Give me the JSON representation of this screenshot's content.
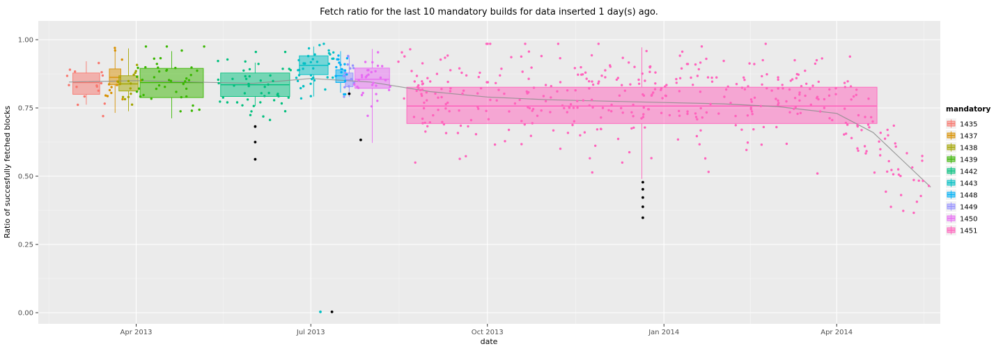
{
  "title": "Fetch ratio for the last 10 mandatory builds for data inserted 1 day(s) ago.",
  "axes": {
    "x": {
      "label": "date",
      "ticks": [
        "Apr 2013",
        "Jul 2013",
        "Oct 2013",
        "Jan 2014",
        "Apr 2014"
      ],
      "tick_dates": [
        "2013-04-01",
        "2013-07-01",
        "2013-10-01",
        "2014-01-01",
        "2014-04-01"
      ],
      "domain": [
        "2013-02-09",
        "2014-05-25"
      ]
    },
    "y": {
      "label": "Ratio of succesfully fetched blocks",
      "ticks": [
        "1.00",
        "0.75",
        "0.50",
        "0.25",
        "0.00"
      ],
      "tick_values": [
        1.0,
        0.75,
        0.5,
        0.25,
        0.0
      ]
    }
  },
  "legend": {
    "title": "mandatory",
    "items": [
      {
        "label": "1435",
        "color": "#F8766D"
      },
      {
        "label": "1437",
        "color": "#D89000"
      },
      {
        "label": "1438",
        "color": "#A3A500"
      },
      {
        "label": "1439",
        "color": "#39B600"
      },
      {
        "label": "1442",
        "color": "#00BF7D"
      },
      {
        "label": "1443",
        "color": "#00BFC4"
      },
      {
        "label": "1448",
        "color": "#00B0F6"
      },
      {
        "label": "1449",
        "color": "#9590FF"
      },
      {
        "label": "1450",
        "color": "#E76BF3"
      },
      {
        "label": "1451",
        "color": "#FF62BC"
      }
    ]
  },
  "style": {
    "panel_background": "#EBEBEB",
    "grid_major": "#FFFFFF",
    "grid_minor": "#FFFFFF",
    "tick_text": "#4D4D4D",
    "outlier_color": "#000000",
    "trend_color": "#8C8C8C",
    "box_fill_opacity": 0.5
  },
  "chart_data": {
    "type": "boxplot+scatter",
    "x_unit": "date",
    "y_range": [
      0.0,
      1.0
    ],
    "groups": [
      {
        "build": "1435",
        "color": "#F8766D",
        "box": {
          "x_start": "2013-02-27",
          "x_end": "2013-03-13",
          "q1": 0.8,
          "median": 0.843,
          "q3": 0.878,
          "whisker_low": 0.762,
          "whisker_high": 0.921
        },
        "scatter": [
          {
            "kind": "normal",
            "n": 16,
            "from": "2013-02-24",
            "to": "2013-03-16",
            "mean": 0.85,
            "sd": 0.055,
            "min": 0.715,
            "max": 0.955
          }
        ],
        "outliers": []
      },
      {
        "build": "1437",
        "color": "#D89000",
        "box": {
          "x_start": "2013-03-18",
          "x_end": "2013-03-24",
          "q1": 0.835,
          "median": 0.862,
          "q3": 0.893,
          "whisker_low": 0.732,
          "whisker_high": 0.972
        },
        "scatter": [
          {
            "kind": "normal",
            "n": 12,
            "from": "2013-03-16",
            "to": "2013-03-26",
            "mean": 0.86,
            "sd": 0.06,
            "min": 0.73,
            "max": 0.97
          }
        ],
        "outliers": []
      },
      {
        "build": "1438",
        "color": "#A3A500",
        "box": {
          "x_start": "2013-03-23",
          "x_end": "2013-04-02",
          "q1": 0.812,
          "median": 0.838,
          "q3": 0.868,
          "whisker_low": 0.738,
          "whisker_high": 0.968
        },
        "scatter": [
          {
            "kind": "normal",
            "n": 14,
            "from": "2013-03-21",
            "to": "2013-04-04",
            "mean": 0.845,
            "sd": 0.06,
            "min": 0.72,
            "max": 0.97
          }
        ],
        "outliers": []
      },
      {
        "build": "1439",
        "color": "#39B600",
        "box": {
          "x_start": "2013-04-03",
          "x_end": "2013-05-06",
          "q1": 0.788,
          "median": 0.843,
          "q3": 0.895,
          "whisker_low": 0.712,
          "whisker_high": 0.958
        },
        "scatter": [
          {
            "kind": "normal",
            "n": 42,
            "from": "2013-04-01",
            "to": "2013-05-08",
            "mean": 0.845,
            "sd": 0.07,
            "min": 0.67,
            "max": 0.975
          }
        ],
        "outliers": []
      },
      {
        "build": "1442",
        "color": "#00BF7D",
        "box": {
          "x_start": "2013-05-15",
          "x_end": "2013-06-20",
          "q1": 0.792,
          "median": 0.835,
          "q3": 0.878,
          "whisker_low": 0.757,
          "whisker_high": 0.916
        },
        "scatter": [
          {
            "kind": "normal",
            "n": 48,
            "from": "2013-05-13",
            "to": "2013-06-22",
            "mean": 0.835,
            "sd": 0.06,
            "min": 0.7,
            "max": 0.955
          }
        ],
        "outliers": [
          [
            "2013-06-02",
            0.682
          ],
          [
            "2013-06-02",
            0.625
          ],
          [
            "2013-06-02",
            0.562
          ]
        ]
      },
      {
        "build": "1443",
        "color": "#00BFC4",
        "box": {
          "x_start": "2013-06-25",
          "x_end": "2013-07-10",
          "q1": 0.872,
          "median": 0.906,
          "q3": 0.941,
          "whisker_low": 0.792,
          "whisker_high": 0.975
        },
        "scatter": [
          {
            "kind": "normal",
            "n": 38,
            "from": "2013-06-23",
            "to": "2013-07-13",
            "mean": 0.9,
            "sd": 0.05,
            "min": 0.785,
            "max": 0.985
          }
        ],
        "outliers": [
          [
            "2013-07-06",
            0.003,
            "#00BFC4"
          ],
          [
            "2013-07-12",
            0.003,
            "#000000"
          ]
        ]
      },
      {
        "build": "1448",
        "color": "#00B0F6",
        "box": {
          "x_start": "2013-07-14",
          "x_end": "2013-07-19",
          "q1": 0.843,
          "median": 0.868,
          "q3": 0.89,
          "whisker_low": 0.806,
          "whisker_high": 0.958
        },
        "scatter": [
          {
            "kind": "normal",
            "n": 16,
            "from": "2013-07-13",
            "to": "2013-07-20",
            "mean": 0.875,
            "sd": 0.045,
            "min": 0.8,
            "max": 0.97
          }
        ],
        "outliers": [
          [
            "2013-07-21",
            0.802
          ]
        ]
      },
      {
        "build": "1449",
        "color": "#9590FF",
        "box": {
          "x_start": "2013-07-19",
          "x_end": "2013-07-23",
          "q1": 0.828,
          "median": 0.853,
          "q3": 0.878,
          "whisker_low": 0.79,
          "whisker_high": 0.935
        },
        "scatter": [
          {
            "kind": "normal",
            "n": 14,
            "from": "2013-07-18",
            "to": "2013-07-24",
            "mean": 0.855,
            "sd": 0.04,
            "min": 0.78,
            "max": 0.94
          }
        ],
        "outliers": []
      },
      {
        "build": "1450",
        "color": "#E76BF3",
        "box": {
          "x_start": "2013-07-24",
          "x_end": "2013-08-11",
          "q1": 0.822,
          "median": 0.855,
          "q3": 0.896,
          "whisker_low": 0.622,
          "whisker_high": 0.966
        },
        "scatter": [
          {
            "kind": "normal",
            "n": 32,
            "from": "2013-07-23",
            "to": "2013-08-13",
            "mean": 0.855,
            "sd": 0.06,
            "min": 0.63,
            "max": 0.97
          }
        ],
        "outliers": [
          [
            "2013-07-27",
            0.633
          ]
        ]
      },
      {
        "build": "1451",
        "color": "#FF62BC",
        "box": {
          "x_start": "2013-08-20",
          "x_end": "2014-04-22",
          "q1": 0.693,
          "median": 0.757,
          "q3": 0.826,
          "whisker_low": 0.49,
          "whisker_high": 0.972
        },
        "scatter": [
          {
            "kind": "normal",
            "n": 360,
            "from": "2013-08-14",
            "to": "2014-04-12",
            "mean": 0.805,
            "sd": 0.085,
            "min": 0.55,
            "max": 0.985
          },
          {
            "kind": "normal",
            "n": 10,
            "from": "2013-09-05",
            "to": "2014-03-25",
            "mean": 0.56,
            "sd": 0.05,
            "min": 0.46,
            "max": 0.64
          },
          {
            "kind": "decline",
            "n": 55,
            "from": "2014-04-05",
            "to": "2014-05-20",
            "y_start": 0.76,
            "y_end": 0.4,
            "sd": 0.07,
            "min": 0.32,
            "max": 0.92
          }
        ],
        "outliers": [
          [
            "2013-12-21",
            0.478
          ],
          [
            "2013-12-21",
            0.452
          ],
          [
            "2013-12-21",
            0.422
          ],
          [
            "2013-12-21",
            0.388
          ],
          [
            "2013-12-21",
            0.348
          ]
        ]
      }
    ],
    "trend": {
      "color": "#8C8C8C",
      "points": [
        [
          "2013-02-25",
          0.845
        ],
        [
          "2013-04-01",
          0.85
        ],
        [
          "2013-05-01",
          0.845
        ],
        [
          "2013-06-01",
          0.84
        ],
        [
          "2013-07-01",
          0.858
        ],
        [
          "2013-08-01",
          0.845
        ],
        [
          "2013-09-01",
          0.81
        ],
        [
          "2013-10-01",
          0.79
        ],
        [
          "2013-11-01",
          0.78
        ],
        [
          "2013-12-01",
          0.775
        ],
        [
          "2014-01-01",
          0.77
        ],
        [
          "2014-02-01",
          0.765
        ],
        [
          "2014-03-01",
          0.755
        ],
        [
          "2014-04-01",
          0.73
        ],
        [
          "2014-04-20",
          0.66
        ],
        [
          "2014-05-05",
          0.56
        ],
        [
          "2014-05-20",
          0.46
        ]
      ]
    }
  }
}
